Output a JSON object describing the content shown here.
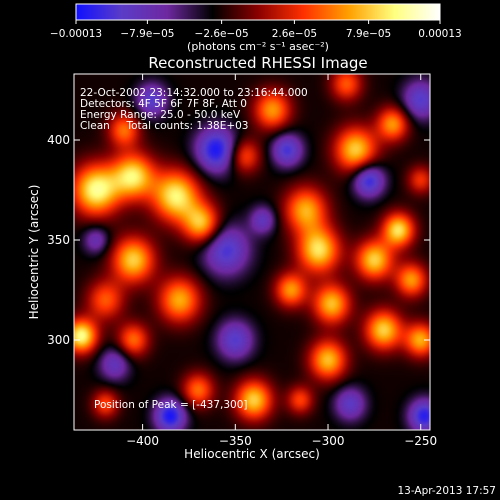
{
  "chart_data": {
    "type": "heatmap",
    "title": "Reconstructed RHESSI Image",
    "xlabel": "Heliocentric X (arcsec)",
    "ylabel": "Heliocentric Y (arcsec)",
    "xlim": [
      -437,
      -245
    ],
    "ylim": [
      255,
      433
    ],
    "x_ticks": [
      -400,
      -350,
      -300,
      -250
    ],
    "x_tick_labels": [
      "−400",
      "−350",
      "−300",
      "−250"
    ],
    "y_ticks": [
      300,
      350,
      400
    ],
    "y_tick_labels": [
      "300",
      "350",
      "400"
    ],
    "colorbar": {
      "min": -0.00013,
      "max": 0.00013,
      "ticks": [
        -0.00013,
        -7.9e-05,
        -2.6e-05,
        2.6e-05,
        7.9e-05,
        0.00013
      ],
      "tick_labels": [
        "−0.00013",
        "−7.9e−05",
        "−2.6e−05",
        "2.6e−05",
        "7.9e−05",
        "0.00013"
      ],
      "units": "(photons cm⁻² s⁻¹ asec⁻²)"
    },
    "annotations": {
      "time": "22-Oct-2002 23:14:32.000 to 23:16:44.000",
      "detectors": "Detectors: 4F 5F 6F 7F 8F, Att 0",
      "energy": "Energy Range: 25.0 - 50.0 keV",
      "method": "Clean     Total counts: 1.38E+03",
      "peak": "Position of Peak = [-437,300]"
    },
    "peak_position": [
      -437,
      300
    ],
    "footer_date": "13-Apr-2013 17:57",
    "colormap_stops": [
      "#1010ff",
      "#5a3cc8",
      "#6e28a0",
      "#000000",
      "#8a0000",
      "#ff3000",
      "#ffa000",
      "#ffff80",
      "#ffffff"
    ],
    "blobs": [
      {
        "x": -425,
        "y": 375,
        "s": 9,
        "a": 1.0
      },
      {
        "x": -405,
        "y": 382,
        "s": 8,
        "a": 0.9
      },
      {
        "x": -382,
        "y": 372,
        "s": 9,
        "a": 0.95
      },
      {
        "x": -368,
        "y": 358,
        "s": 7,
        "a": 0.8
      },
      {
        "x": -405,
        "y": 340,
        "s": 8,
        "a": 0.85
      },
      {
        "x": -380,
        "y": 320,
        "s": 8,
        "a": 0.75
      },
      {
        "x": -420,
        "y": 320,
        "s": 7,
        "a": 0.55
      },
      {
        "x": -433,
        "y": 302,
        "s": 6,
        "a": 1.0
      },
      {
        "x": -405,
        "y": 300,
        "s": 6,
        "a": 0.6
      },
      {
        "x": -370,
        "y": 275,
        "s": 6,
        "a": 0.6
      },
      {
        "x": -420,
        "y": 268,
        "s": 5,
        "a": 0.5
      },
      {
        "x": -340,
        "y": 270,
        "s": 7,
        "a": 0.85
      },
      {
        "x": -345,
        "y": 392,
        "s": 6,
        "a": 0.55
      },
      {
        "x": -410,
        "y": 405,
        "s": 6,
        "a": 0.6
      },
      {
        "x": -312,
        "y": 365,
        "s": 8,
        "a": 0.75
      },
      {
        "x": -305,
        "y": 345,
        "s": 8,
        "a": 0.9
      },
      {
        "x": -320,
        "y": 325,
        "s": 6,
        "a": 0.7
      },
      {
        "x": -298,
        "y": 318,
        "s": 7,
        "a": 0.8
      },
      {
        "x": -300,
        "y": 290,
        "s": 7,
        "a": 0.8
      },
      {
        "x": -315,
        "y": 270,
        "s": 5,
        "a": 0.5
      },
      {
        "x": -275,
        "y": 340,
        "s": 7,
        "a": 0.85
      },
      {
        "x": -262,
        "y": 355,
        "s": 6,
        "a": 0.9
      },
      {
        "x": -255,
        "y": 330,
        "s": 6,
        "a": 0.7
      },
      {
        "x": -270,
        "y": 305,
        "s": 7,
        "a": 0.85
      },
      {
        "x": -250,
        "y": 300,
        "s": 6,
        "a": 0.75
      },
      {
        "x": -285,
        "y": 395,
        "s": 8,
        "a": 0.85
      },
      {
        "x": -265,
        "y": 408,
        "s": 6,
        "a": 0.7
      },
      {
        "x": -250,
        "y": 380,
        "s": 5,
        "a": 0.45
      },
      {
        "x": -330,
        "y": 415,
        "s": 7,
        "a": 0.7
      },
      {
        "x": -290,
        "y": 428,
        "s": 6,
        "a": 0.55
      },
      {
        "x": -360,
        "y": 395,
        "s": 8,
        "a": -0.75
      },
      {
        "x": -395,
        "y": 420,
        "s": 6,
        "a": -0.55
      },
      {
        "x": -322,
        "y": 395,
        "s": 6,
        "a": -0.6
      },
      {
        "x": -278,
        "y": 380,
        "s": 6,
        "a": -0.7
      },
      {
        "x": -250,
        "y": 420,
        "s": 7,
        "a": -0.55
      },
      {
        "x": -355,
        "y": 345,
        "s": 9,
        "a": -0.6
      },
      {
        "x": -425,
        "y": 350,
        "s": 5,
        "a": -0.4
      },
      {
        "x": -415,
        "y": 288,
        "s": 6,
        "a": -0.45
      },
      {
        "x": -385,
        "y": 262,
        "s": 6,
        "a": -0.75
      },
      {
        "x": -350,
        "y": 300,
        "s": 7,
        "a": -0.55
      },
      {
        "x": -288,
        "y": 268,
        "s": 6,
        "a": -0.5
      },
      {
        "x": -248,
        "y": 262,
        "s": 6,
        "a": -0.7
      },
      {
        "x": -335,
        "y": 360,
        "s": 5,
        "a": -0.45
      }
    ],
    "background_level": -0.22
  }
}
